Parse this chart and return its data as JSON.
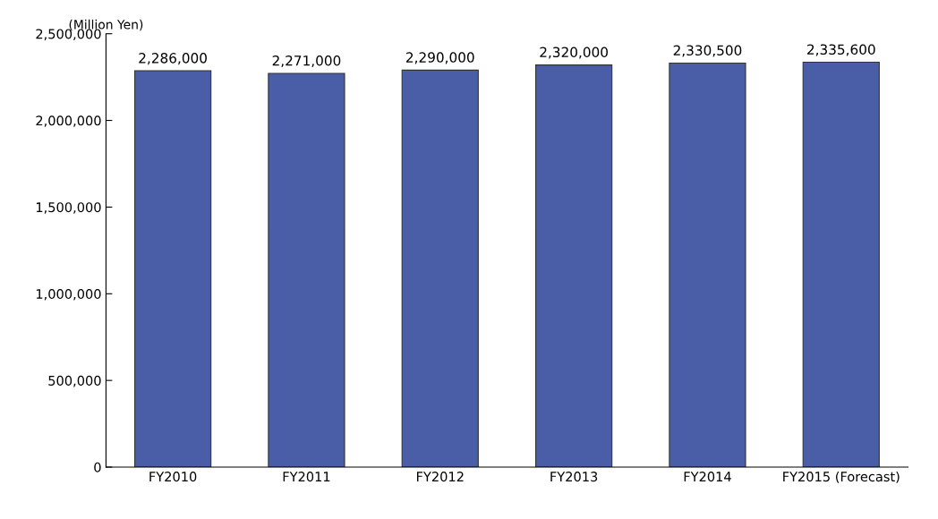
{
  "chart_data": {
    "type": "bar",
    "ylabel": "(Million Yen)",
    "categories": [
      "FY2010",
      "FY2011",
      "FY2012",
      "FY2013",
      "FY2014",
      "FY2015 (Forecast)"
    ],
    "values": [
      2286000,
      2271000,
      2290000,
      2320000,
      2330500,
      2335600
    ],
    "color": "#4a5ea8",
    "ylim": [
      0,
      2500000
    ],
    "yticks": [
      {
        "value": 0,
        "label": "0"
      },
      {
        "value": 500000,
        "label": "500,000"
      },
      {
        "value": 1000000,
        "label": "1,000,000"
      },
      {
        "value": 1500000,
        "label": "1,500,000"
      },
      {
        "value": 2000000,
        "label": "2,000,000"
      },
      {
        "value": 2500000,
        "label": "2,500,000"
      }
    ],
    "value_labels": [
      "2,286,000",
      "2,271,000",
      "2,290,000",
      "2,320,000",
      "2,330,500",
      "2,335,600"
    ],
    "grid": false,
    "legend": false
  }
}
